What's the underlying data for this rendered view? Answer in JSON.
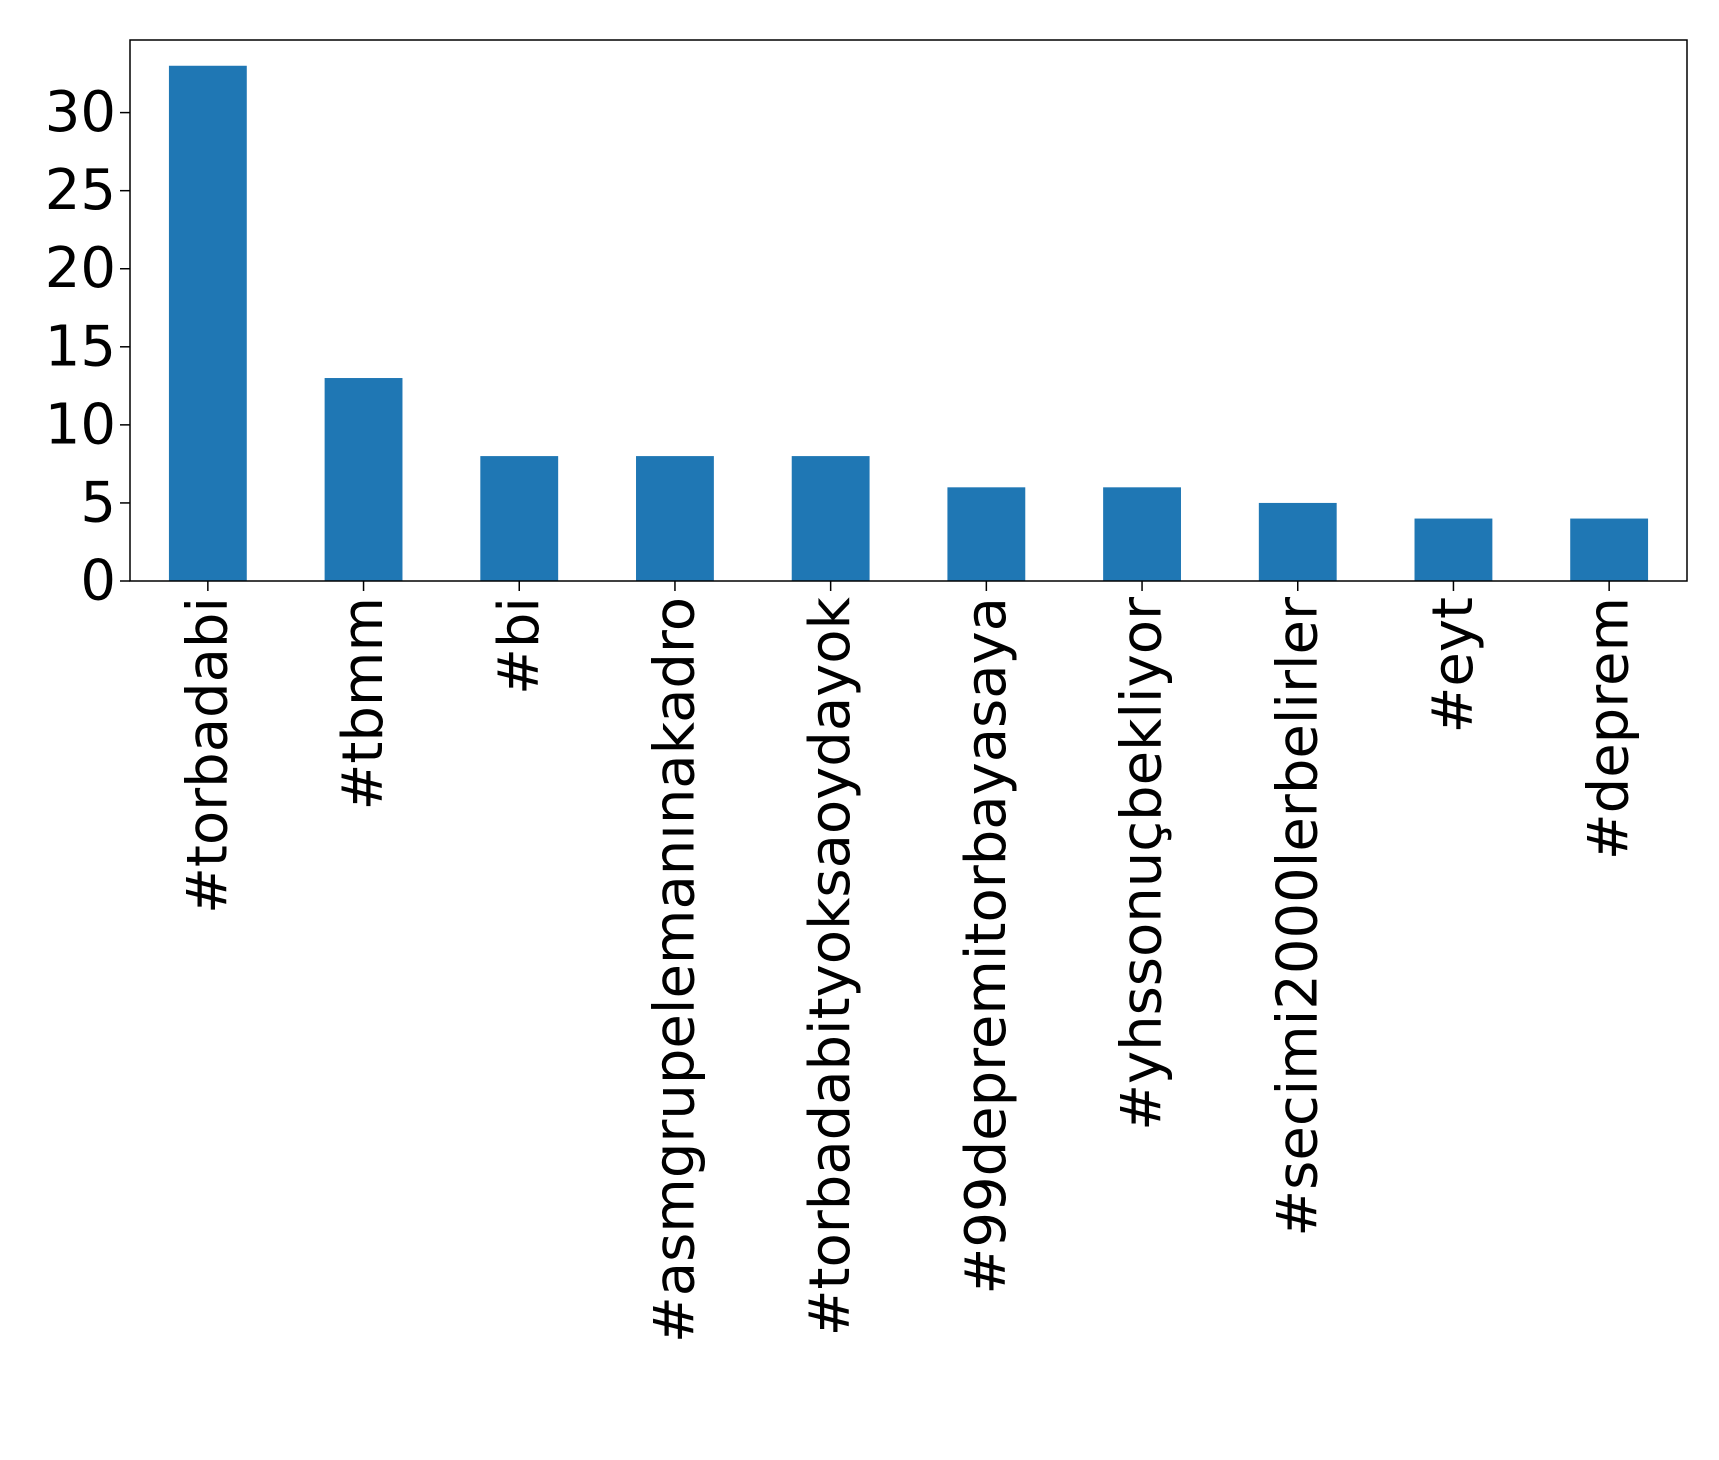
{
  "chart_data": {
    "type": "bar",
    "title": "",
    "xlabel": "",
    "ylabel": "",
    "categories": [
      "#torbadabi",
      "#tbmm",
      "#bi",
      "#asmgrupelemanınakadro",
      "#torbadabityoksaoydayok",
      "#99depremitorbayasaya",
      "#yhssonuçbekliyor",
      "#secimi2000lerbelirler",
      "#eyt",
      "#deprem"
    ],
    "values": [
      33,
      13,
      8,
      8,
      8,
      6,
      6,
      5,
      4,
      4
    ],
    "ylim": [
      0,
      34.65
    ],
    "yticks": [
      "0",
      "5",
      "10",
      "15",
      "20",
      "25",
      "30"
    ],
    "bar_color": "#1f77b4",
    "grid": false,
    "legend": "none"
  }
}
